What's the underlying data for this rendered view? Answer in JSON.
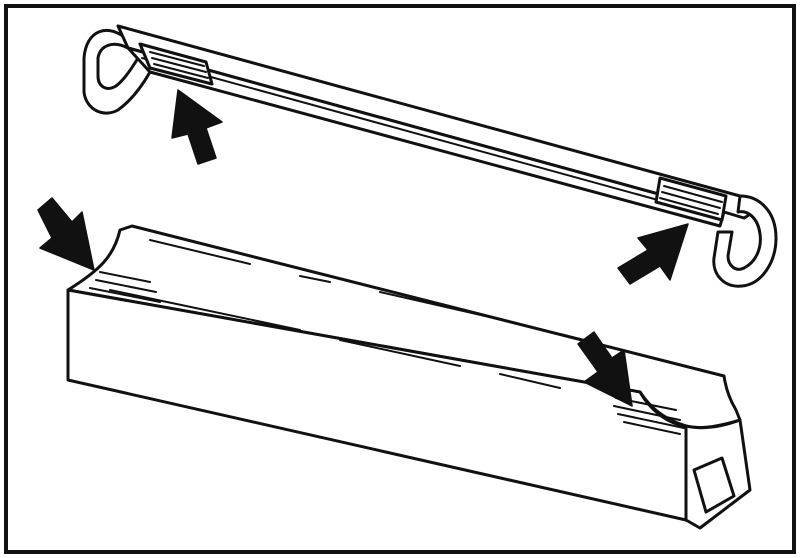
{
  "figure": {
    "stroke_color": "#111111",
    "fill_color": "#ffffff",
    "arrow_color": "#111111",
    "parts": [
      "frame-border",
      "roof-rack-bar",
      "support-block",
      "arrows"
    ]
  }
}
